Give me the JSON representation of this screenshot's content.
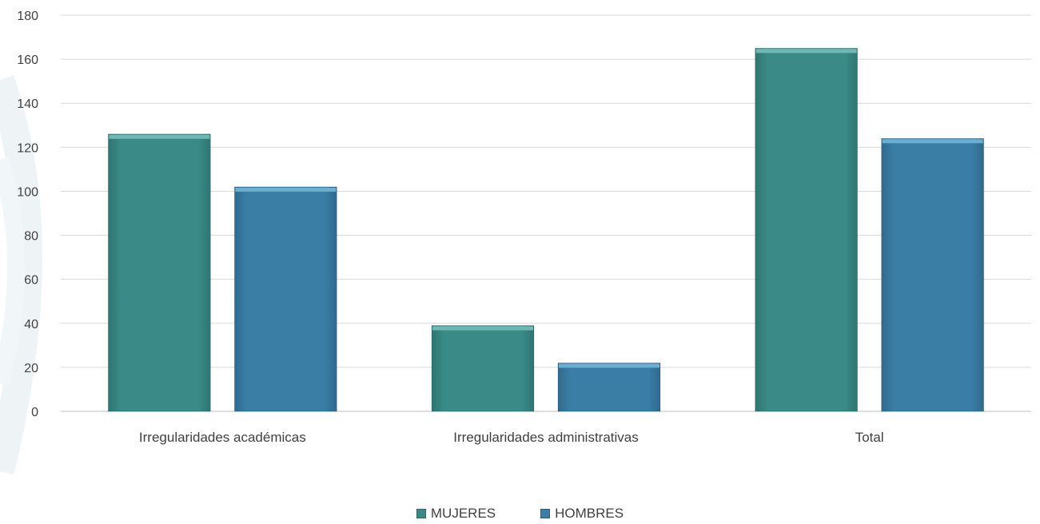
{
  "chart_data": {
    "type": "bar",
    "categories": [
      "Irregularidades académicas",
      "Irregularidades administrativas",
      "Total"
    ],
    "series": [
      {
        "name": "MUJERES",
        "values": [
          126,
          39,
          165
        ],
        "color": "#3a8a87"
      },
      {
        "name": "HOMBRES",
        "values": [
          102,
          22,
          124
        ],
        "color": "#3a7ea6"
      }
    ],
    "ylim": [
      0,
      180
    ],
    "yticks": [
      0,
      20,
      40,
      60,
      80,
      100,
      120,
      140,
      160,
      180
    ],
    "title": "",
    "xlabel": "",
    "ylabel": "",
    "grid": true,
    "legend_position": "bottom"
  }
}
